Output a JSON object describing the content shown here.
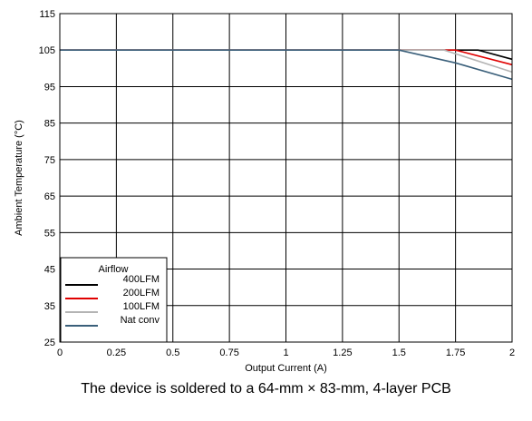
{
  "chart_data": {
    "type": "line",
    "xlabel": "Output Current (A)",
    "ylabel": "Ambient Temperature (°C)",
    "xlim": [
      0,
      2
    ],
    "ylim": [
      25,
      115
    ],
    "xticks": [
      0,
      0.25,
      0.5,
      0.75,
      1,
      1.25,
      1.5,
      1.75,
      2
    ],
    "xtick_labels": [
      "0",
      "0.25",
      "0.5",
      "0.75",
      "1",
      "1.25",
      "1.5",
      "1.75",
      "2"
    ],
    "yticks": [
      25,
      35,
      45,
      55,
      65,
      75,
      85,
      95,
      105,
      115
    ],
    "ytick_labels": [
      "25",
      "35",
      "45",
      "55",
      "65",
      "75",
      "85",
      "95",
      "105",
      "115"
    ],
    "grid": true,
    "legend": {
      "title": "Airflow",
      "placement": "bottom-left"
    },
    "series": [
      {
        "name": "400LFM",
        "color": "#000000",
        "x": [
          0,
          1.5,
          1.85,
          2
        ],
        "y": [
          105,
          105,
          105,
          102.5
        ]
      },
      {
        "name": "200LFM",
        "color": "#e00000",
        "x": [
          0,
          1.5,
          1.75,
          2
        ],
        "y": [
          105,
          105,
          105,
          101
        ]
      },
      {
        "name": "100LFM",
        "color": "#b4b4b4",
        "x": [
          0,
          1.5,
          1.7,
          2
        ],
        "y": [
          105,
          105,
          105,
          99
        ]
      },
      {
        "name": "Nat conv",
        "color": "#3a5f7a",
        "x": [
          0,
          1.5,
          1.75,
          2
        ],
        "y": [
          105,
          105,
          101.5,
          97
        ]
      }
    ]
  },
  "caption": "The device is soldered to a 64-mm × 83-mm, 4-layer PCB"
}
